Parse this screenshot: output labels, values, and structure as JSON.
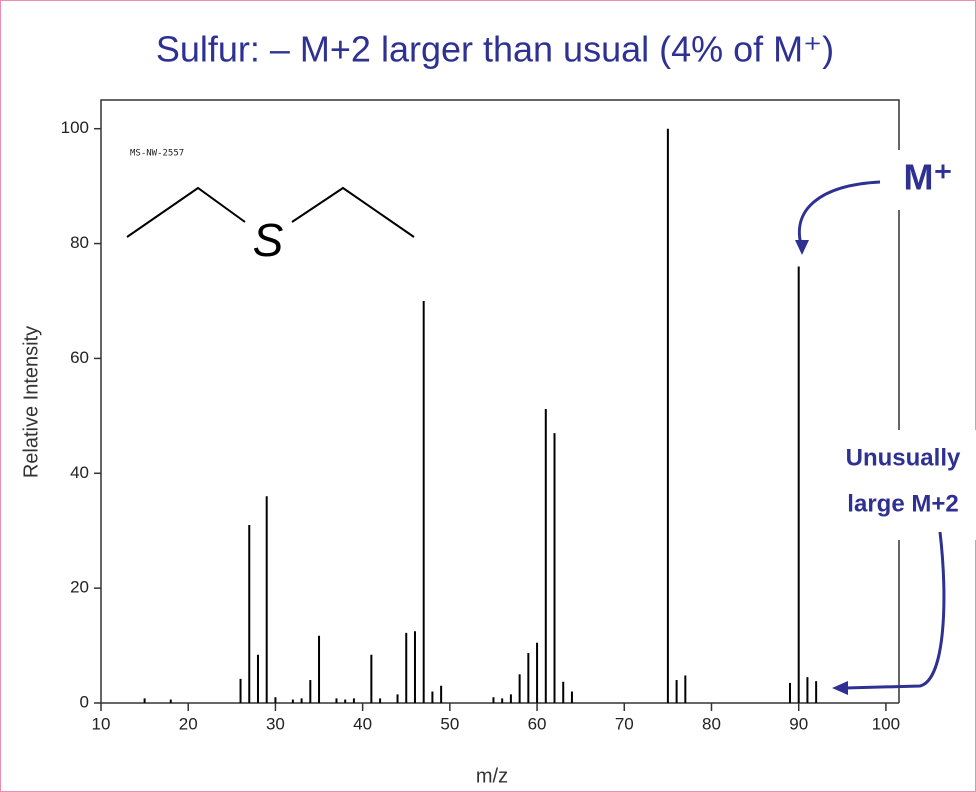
{
  "chart_data": {
    "type": "stem",
    "title": "Sulfur: –  M+2 larger than usual (4% of M⁺)",
    "x_label": "m/z",
    "y_label": "Relative Intensity",
    "x": [
      15,
      18,
      26,
      27,
      28,
      29,
      30,
      32,
      33,
      34,
      35,
      37,
      38,
      39,
      41,
      42,
      44,
      45,
      46,
      47,
      48,
      49,
      55,
      56,
      57,
      58,
      59,
      60,
      61,
      62,
      63,
      64,
      75,
      76,
      77,
      89,
      90,
      91,
      92
    ],
    "values": [
      0.8,
      0.6,
      4.2,
      31,
      8.4,
      36,
      1,
      0.6,
      0.8,
      4,
      11.7,
      0.8,
      0.6,
      0.8,
      8.4,
      0.8,
      1.5,
      12.2,
      12.5,
      70,
      2,
      3,
      1,
      0.8,
      1.5,
      5,
      8.7,
      10.5,
      51.2,
      47,
      3.7,
      2,
      100,
      4,
      4.8,
      3.5,
      76,
      4.5,
      3.8
    ],
    "color": "#000000",
    "xlim": [
      10,
      101.5
    ],
    "ylim": [
      0,
      105
    ],
    "xticks": [
      10,
      20,
      30,
      40,
      50,
      60,
      70,
      80,
      90,
      100
    ],
    "yticks": [
      0,
      20,
      40,
      60,
      80,
      100
    ],
    "annotations": {
      "spectrum_id": "MS-NW-2557",
      "structure_label": "S",
      "m_plus": "M⁺",
      "m_plus_2": [
        "Unusually",
        "large M+2"
      ]
    }
  }
}
